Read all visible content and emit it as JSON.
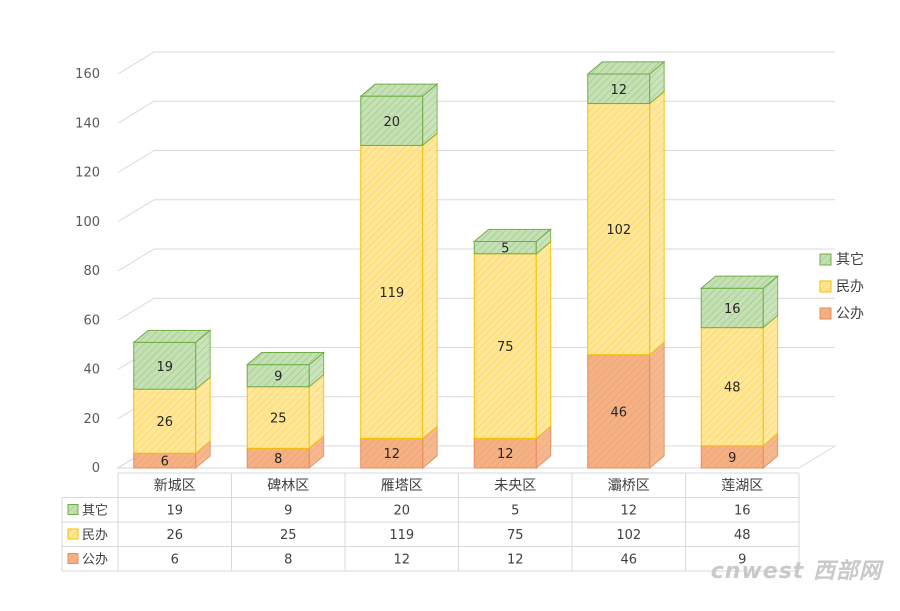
{
  "chart_data": {
    "type": "bar",
    "stacked": true,
    "three_d": true,
    "categories": [
      "新城区",
      "碑林区",
      "雁塔区",
      "未央区",
      "灞桥区",
      "莲湖区"
    ],
    "series": [
      {
        "name": "公办",
        "values": [
          6,
          8,
          12,
          12,
          46,
          9
        ],
        "color": "#f4b183",
        "stroke": "#e98a5b"
      },
      {
        "name": "民办",
        "values": [
          26,
          25,
          119,
          75,
          102,
          48
        ],
        "color": "#ffe699",
        "stroke": "#f2c200"
      },
      {
        "name": "其它",
        "values": [
          19,
          9,
          20,
          5,
          12,
          16
        ],
        "color": "#c5e0b4",
        "stroke": "#70ad47"
      }
    ],
    "y_ticks": [
      0,
      20,
      40,
      60,
      80,
      100,
      120,
      140,
      160
    ],
    "ylim": [
      0,
      160
    ],
    "grid": true,
    "legend_position": "right",
    "data_table": true
  },
  "watermark": "cnwest 西部网"
}
